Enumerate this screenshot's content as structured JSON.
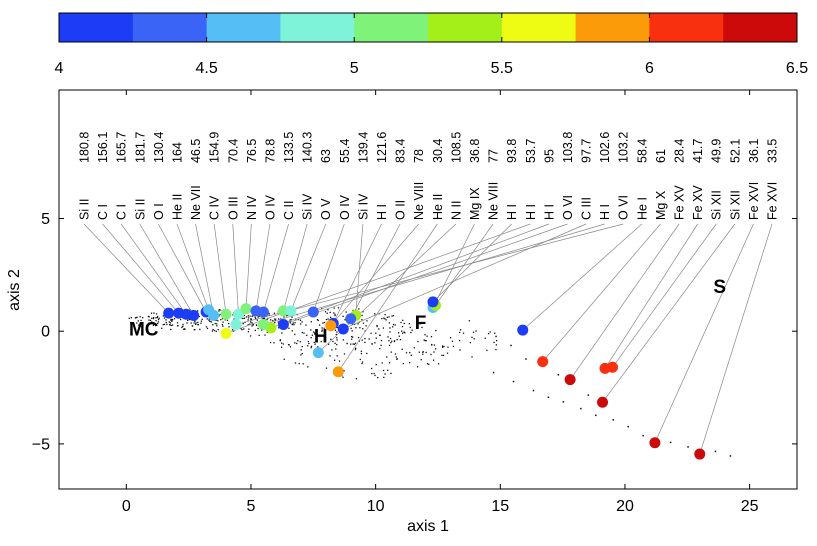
{
  "chart_data": {
    "type": "scatter",
    "xlabel": "axis 1",
    "ylabel": "axis 2",
    "xlim": [
      -2.7,
      26.9
    ],
    "ylim": [
      -7,
      10.7
    ],
    "xticks": [
      0,
      5,
      10,
      15,
      20,
      25
    ],
    "yticks": [
      -5,
      0,
      5
    ],
    "colorbar": {
      "range": [
        4,
        6.5
      ],
      "ticks": [
        4,
        4.5,
        5,
        5.5,
        6,
        6.5
      ],
      "colors": [
        "#1d3cf5",
        "#3a64f5",
        "#55bef5",
        "#7ff3d9",
        "#7ff27a",
        "#a4ef1a",
        "#eefb12",
        "#fb9b0a",
        "#f93010",
        "#cc0a0a"
      ]
    },
    "region_labels": [
      {
        "text": "MC",
        "x": 0.7,
        "y": -0.2
      },
      {
        "text": "H",
        "x": 7.8,
        "y": -0.5
      },
      {
        "text": "F",
        "x": 11.8,
        "y": 0.1
      },
      {
        "text": "S",
        "x": 23.8,
        "y": 1.7
      }
    ],
    "lines": [
      {
        "ion": "Si II",
        "wavelength": "180.8",
        "x": 1.7,
        "y": 0.8,
        "logT": 4.15
      },
      {
        "ion": "C I",
        "wavelength": "156.1",
        "x": 2.1,
        "y": 0.8,
        "logT": 4.05
      },
      {
        "ion": "C I",
        "wavelength": "165.7",
        "x": 2.4,
        "y": 0.75,
        "logT": 4.05
      },
      {
        "ion": "Si II",
        "wavelength": "181.7",
        "x": 2.7,
        "y": 0.7,
        "logT": 4.15
      },
      {
        "ion": "O I",
        "wavelength": "130.4",
        "x": 3.2,
        "y": 0.85,
        "logT": 4.1
      },
      {
        "ion": "He II",
        "wavelength": "164",
        "x": 3.3,
        "y": 0.95,
        "logT": 4.7
      },
      {
        "ion": "Ne VII",
        "wavelength": "46.5",
        "x": 3.5,
        "y": 0.7,
        "logT": 4.6
      },
      {
        "ion": "C IV",
        "wavelength": "154.9",
        "x": 4.0,
        "y": 0.75,
        "logT": 5.0
      },
      {
        "ion": "O III",
        "wavelength": "70.4",
        "x": 4.5,
        "y": 0.75,
        "logT": 4.9
      },
      {
        "ion": "N IV",
        "wavelength": "76.5",
        "x": 4.8,
        "y": 1.0,
        "logT": 5.15
      },
      {
        "ion": "O IV",
        "wavelength": "78.8",
        "x": 5.2,
        "y": 0.9,
        "logT": 4.4
      },
      {
        "ion": "C II",
        "wavelength": "133.5",
        "x": 5.5,
        "y": 0.85,
        "logT": 4.3
      },
      {
        "ion": "Si IV",
        "wavelength": "140.3",
        "x": 6.3,
        "y": 0.9,
        "logT": 5.0
      },
      {
        "ion": "O V",
        "wavelength": "63",
        "x": 6.6,
        "y": 0.9,
        "logT": 4.9
      },
      {
        "ion": "O IV",
        "wavelength": "55.4",
        "x": 7.5,
        "y": 0.85,
        "logT": 4.3
      },
      {
        "ion": "Si IV",
        "wavelength": "139.4",
        "x": 9.2,
        "y": 0.7,
        "logT": 5.3
      },
      {
        "ion": "H I",
        "wavelength": "121.6",
        "x": 8.3,
        "y": 0.35,
        "logT": 4.15
      },
      {
        "ion": "O II",
        "wavelength": "83.4",
        "x": 9.0,
        "y": 0.55,
        "logT": 4.4
      },
      {
        "ion": "Ne VIII",
        "wavelength": "78",
        "x": 8.2,
        "y": 0.25,
        "logT": 5.8
      },
      {
        "ion": "He II",
        "wavelength": "30.4",
        "x": 8.5,
        "y": -1.8,
        "logT": 5.75
      },
      {
        "ion": "N II",
        "wavelength": "108.5",
        "x": 7.7,
        "y": -0.95,
        "logT": 4.6
      },
      {
        "ion": "Mg IX",
        "wavelength": "36.8",
        "x": 12.3,
        "y": 1.05,
        "logT": 4.65
      },
      {
        "ion": "Ne VIII",
        "wavelength": "77",
        "x": 12.4,
        "y": 1.15,
        "logT": 5.35
      },
      {
        "ion": "H I",
        "wavelength": "93.8",
        "x": 12.3,
        "y": 1.3,
        "logT": 4.2
      },
      {
        "ion": "H I",
        "wavelength": "53.7",
        "x": 4.0,
        "y": -0.1,
        "logT": 5.5
      },
      {
        "ion": "H I",
        "wavelength": "95",
        "x": 5.8,
        "y": 0.15,
        "logT": 5.3
      },
      {
        "ion": "O VI",
        "wavelength": "103.8",
        "x": 6.3,
        "y": 0.3,
        "logT": 4.15
      },
      {
        "ion": "C III",
        "wavelength": "97.7",
        "x": 8.7,
        "y": 0.1,
        "logT": 4.2
      },
      {
        "ion": "H I",
        "wavelength": "102.6",
        "x": 5.5,
        "y": 0.3,
        "logT": 5.1
      },
      {
        "ion": "O VI",
        "wavelength": "103.2",
        "x": 4.4,
        "y": 0.3,
        "logT": 4.8
      },
      {
        "ion": "He I",
        "wavelength": "58.4",
        "x": 15.9,
        "y": 0.05,
        "logT": 4.2
      },
      {
        "ion": "Mg X",
        "wavelength": "61",
        "x": 16.7,
        "y": -1.35,
        "logT": 6.1
      },
      {
        "ion": "Fe XV",
        "wavelength": "28.4",
        "x": 17.8,
        "y": -2.15,
        "logT": 6.3
      },
      {
        "ion": "Fe XV",
        "wavelength": "41.7",
        "x": 19.2,
        "y": -1.65,
        "logT": 6.15
      },
      {
        "ion": "Si XII",
        "wavelength": "49.9",
        "x": 19.5,
        "y": -1.6,
        "logT": 6.1
      },
      {
        "ion": "Si XII",
        "wavelength": "52.1",
        "x": 19.1,
        "y": -3.15,
        "logT": 6.3
      },
      {
        "ion": "Fe XVI",
        "wavelength": "36.1",
        "x": 21.2,
        "y": -4.95,
        "logT": 6.35
      },
      {
        "ion": "Fe XVI",
        "wavelength": "33.5",
        "x": 23.0,
        "y": -5.45,
        "logT": 6.3
      }
    ]
  }
}
